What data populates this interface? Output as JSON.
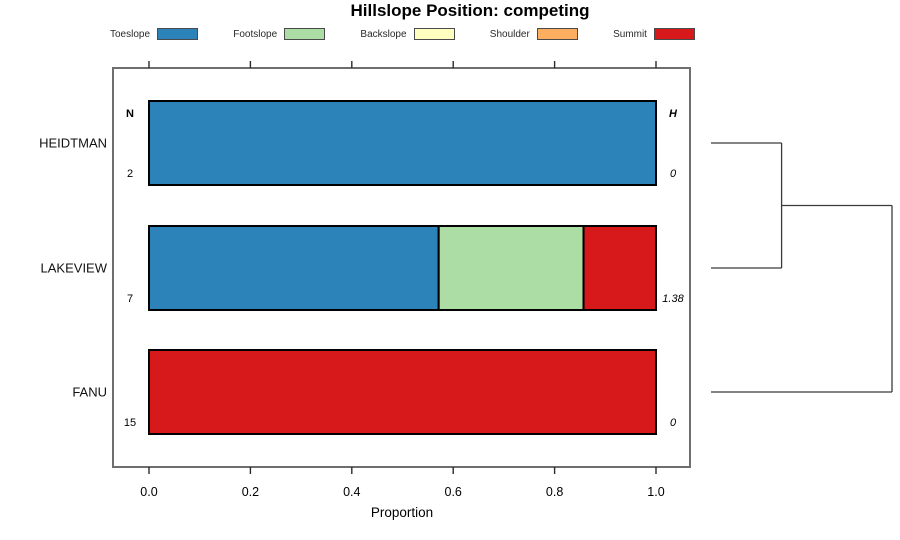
{
  "title": "Hillslope Position: competing",
  "axis": {
    "xlabel": "Proportion"
  },
  "columns": {
    "n_header": "N",
    "h_header": "H"
  },
  "legend": {
    "items": [
      {
        "label": "Toeslope",
        "color": "#2B83BA"
      },
      {
        "label": "Footslope",
        "color": "#ABDDA4"
      },
      {
        "label": "Backslope",
        "color": "#FFFFBF"
      },
      {
        "label": "Shoulder",
        "color": "#FDAE61"
      },
      {
        "label": "Summit",
        "color": "#D7191C"
      }
    ]
  },
  "chart_data": {
    "type": "bar",
    "subtype": "stacked-horizontal",
    "title": "Hillslope Position: competing",
    "xlabel": "Proportion",
    "xlim": [
      0,
      1
    ],
    "x_ticks": [
      "0.0",
      "0.2",
      "0.4",
      "0.6",
      "0.8",
      "1.0"
    ],
    "x_tick_values": [
      0,
      0.2,
      0.4,
      0.6,
      0.8,
      1.0
    ],
    "grid": false,
    "legend_position": "top",
    "categories": [
      "HEIDTMAN",
      "LAKEVIEW",
      "FANU"
    ],
    "series": [
      {
        "name": "Toeslope",
        "color": "#2B83BA",
        "values": [
          1,
          0.5714,
          0
        ]
      },
      {
        "name": "Footslope",
        "color": "#ABDDA4",
        "values": [
          0,
          0.2857,
          0
        ]
      },
      {
        "name": "Backslope",
        "color": "#FFFFBF",
        "values": [
          0,
          0,
          0
        ]
      },
      {
        "name": "Shoulder",
        "color": "#FDAE61",
        "values": [
          0,
          0,
          0
        ]
      },
      {
        "name": "Summit",
        "color": "#D7191C",
        "values": [
          0,
          0.1429,
          1
        ]
      }
    ],
    "n_values": [
      "2",
      "7",
      "15"
    ],
    "h_values": [
      "0",
      "1.38",
      "0"
    ],
    "dendrogram": {
      "orientation": "right-of-plot",
      "leaves": [
        "HEIDTMAN",
        "LAKEVIEW",
        "FANU"
      ],
      "merges": [
        {
          "members": [
            "HEIDTMAN",
            "LAKEVIEW"
          ],
          "rel_height": 0.39
        },
        {
          "members": [
            "HEIDTMAN+LAKEVIEW",
            "FANU"
          ],
          "rel_height": 1.0
        }
      ]
    }
  }
}
